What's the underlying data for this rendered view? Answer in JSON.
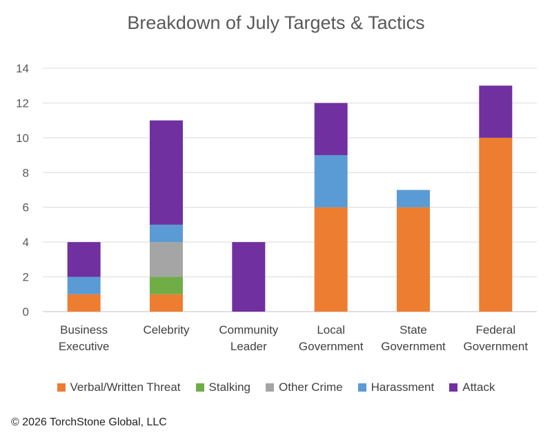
{
  "chart_data": {
    "type": "bar",
    "stacked": true,
    "title": "Breakdown of July Targets & Tactics",
    "categories": [
      [
        "Business",
        "Executive"
      ],
      [
        "Celebrity"
      ],
      [
        "Community",
        "Leader"
      ],
      [
        "Local",
        "Government"
      ],
      [
        "State",
        "Government"
      ],
      [
        "Federal",
        "Government"
      ]
    ],
    "series": [
      {
        "name": "Verbal/Written Threat",
        "color": "#ED7D31",
        "values": [
          1,
          1,
          0,
          6,
          6,
          10
        ]
      },
      {
        "name": "Stalking",
        "color": "#70AD47",
        "values": [
          0,
          1,
          0,
          0,
          0,
          0
        ]
      },
      {
        "name": "Other Crime",
        "color": "#A5A5A5",
        "values": [
          0,
          2,
          0,
          0,
          0,
          0
        ]
      },
      {
        "name": "Harassment",
        "color": "#5B9BD5",
        "values": [
          1,
          1,
          0,
          3,
          1,
          0
        ]
      },
      {
        "name": "Attack",
        "color": "#7030A0",
        "values": [
          2,
          6,
          4,
          3,
          0,
          3
        ]
      }
    ],
    "ylim": [
      0,
      14
    ],
    "yticks": [
      0,
      2,
      4,
      6,
      8,
      10,
      12,
      14
    ],
    "grid": true,
    "legend": "bottom"
  },
  "footer": {
    "copyright": "© 2026 TorchStone Global, LLC"
  }
}
